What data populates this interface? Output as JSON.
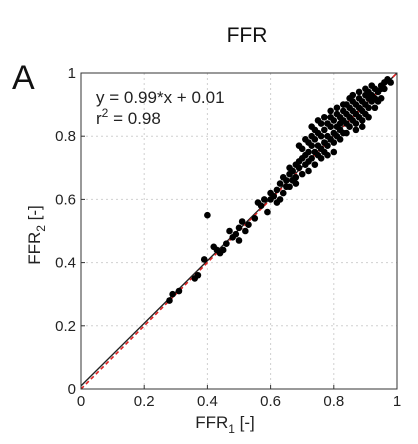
{
  "chart_data": {
    "type": "scatter",
    "title": "FFR",
    "panel_label": "A",
    "xlabel": {
      "base": "FFR",
      "sub": "1",
      "suffix": " [-]"
    },
    "ylabel": {
      "base": "FFR",
      "sub": "2",
      "suffix": " [-]"
    },
    "xlim": [
      0,
      1
    ],
    "ylim": [
      0,
      1
    ],
    "grid": true,
    "x_ticks": [
      "0",
      "0.2",
      "0.4",
      "0.6",
      "0.8",
      "1"
    ],
    "y_ticks": [
      "0",
      "0.2",
      "0.4",
      "0.6",
      "0.8",
      "1"
    ],
    "annotation": {
      "equation": "y = 0.99*x + 0.01",
      "r2_base": "r",
      "r2_sup": "2",
      "r2_value": " = 0.98"
    },
    "fit": {
      "slope": 0.99,
      "intercept": 0.01,
      "color": "#222222"
    },
    "identity_line": {
      "slope": 1,
      "intercept": 0,
      "color": "#e02020",
      "style": "dashed"
    },
    "point_color": "#000000",
    "points": [
      [
        0.28,
        0.28
      ],
      [
        0.29,
        0.3
      ],
      [
        0.31,
        0.31
      ],
      [
        0.36,
        0.35
      ],
      [
        0.37,
        0.36
      ],
      [
        0.39,
        0.41
      ],
      [
        0.4,
        0.55
      ],
      [
        0.42,
        0.45
      ],
      [
        0.43,
        0.44
      ],
      [
        0.44,
        0.43
      ],
      [
        0.45,
        0.44
      ],
      [
        0.46,
        0.46
      ],
      [
        0.47,
        0.5
      ],
      [
        0.48,
        0.48
      ],
      [
        0.49,
        0.49
      ],
      [
        0.5,
        0.51
      ],
      [
        0.5,
        0.47
      ],
      [
        0.51,
        0.53
      ],
      [
        0.52,
        0.5
      ],
      [
        0.53,
        0.52
      ],
      [
        0.55,
        0.54
      ],
      [
        0.56,
        0.59
      ],
      [
        0.57,
        0.58
      ],
      [
        0.58,
        0.6
      ],
      [
        0.59,
        0.56
      ],
      [
        0.6,
        0.6
      ],
      [
        0.6,
        0.62
      ],
      [
        0.61,
        0.61
      ],
      [
        0.62,
        0.63
      ],
      [
        0.63,
        0.6
      ],
      [
        0.63,
        0.65
      ],
      [
        0.64,
        0.67
      ],
      [
        0.65,
        0.64
      ],
      [
        0.65,
        0.66
      ],
      [
        0.66,
        0.68
      ],
      [
        0.66,
        0.7
      ],
      [
        0.67,
        0.66
      ],
      [
        0.67,
        0.69
      ],
      [
        0.68,
        0.71
      ],
      [
        0.68,
        0.67
      ],
      [
        0.69,
        0.7
      ],
      [
        0.69,
        0.72
      ],
      [
        0.7,
        0.68
      ],
      [
        0.7,
        0.73
      ],
      [
        0.7,
        0.76
      ],
      [
        0.71,
        0.71
      ],
      [
        0.71,
        0.74
      ],
      [
        0.72,
        0.78
      ],
      [
        0.72,
        0.72
      ],
      [
        0.72,
        0.75
      ],
      [
        0.73,
        0.73
      ],
      [
        0.73,
        0.77
      ],
      [
        0.73,
        0.8
      ],
      [
        0.74,
        0.75
      ],
      [
        0.74,
        0.79
      ],
      [
        0.74,
        0.82
      ],
      [
        0.75,
        0.74
      ],
      [
        0.75,
        0.77
      ],
      [
        0.75,
        0.81
      ],
      [
        0.76,
        0.76
      ],
      [
        0.76,
        0.8
      ],
      [
        0.76,
        0.84
      ],
      [
        0.77,
        0.78
      ],
      [
        0.77,
        0.82
      ],
      [
        0.77,
        0.75
      ],
      [
        0.78,
        0.8
      ],
      [
        0.78,
        0.84
      ],
      [
        0.78,
        0.77
      ],
      [
        0.79,
        0.79
      ],
      [
        0.79,
        0.83
      ],
      [
        0.79,
        0.86
      ],
      [
        0.8,
        0.81
      ],
      [
        0.8,
        0.85
      ],
      [
        0.8,
        0.78
      ],
      [
        0.81,
        0.83
      ],
      [
        0.81,
        0.87
      ],
      [
        0.81,
        0.8
      ],
      [
        0.82,
        0.82
      ],
      [
        0.82,
        0.86
      ],
      [
        0.82,
        0.84
      ],
      [
        0.83,
        0.85
      ],
      [
        0.83,
        0.88
      ],
      [
        0.83,
        0.81
      ],
      [
        0.84,
        0.84
      ],
      [
        0.84,
        0.87
      ],
      [
        0.84,
        0.9
      ],
      [
        0.85,
        0.86
      ],
      [
        0.85,
        0.83
      ],
      [
        0.85,
        0.89
      ],
      [
        0.86,
        0.88
      ],
      [
        0.86,
        0.85
      ],
      [
        0.86,
        0.91
      ],
      [
        0.87,
        0.87
      ],
      [
        0.87,
        0.9
      ],
      [
        0.87,
        0.84
      ],
      [
        0.88,
        0.89
      ],
      [
        0.88,
        0.92
      ],
      [
        0.88,
        0.86
      ],
      [
        0.89,
        0.88
      ],
      [
        0.89,
        0.91
      ],
      [
        0.89,
        0.85
      ],
      [
        0.9,
        0.9
      ],
      [
        0.9,
        0.93
      ],
      [
        0.9,
        0.87
      ],
      [
        0.91,
        0.92
      ],
      [
        0.91,
        0.89
      ],
      [
        0.91,
        0.94
      ],
      [
        0.92,
        0.91
      ],
      [
        0.92,
        0.93
      ],
      [
        0.93,
        0.92
      ],
      [
        0.93,
        0.95
      ],
      [
        0.94,
        0.94
      ],
      [
        0.94,
        0.91
      ],
      [
        0.95,
        0.95
      ],
      [
        0.95,
        0.96
      ],
      [
        0.96,
        0.95
      ],
      [
        0.96,
        0.97
      ],
      [
        0.97,
        0.98
      ],
      [
        0.98,
        0.97
      ],
      [
        0.76,
        0.73
      ],
      [
        0.78,
        0.74
      ],
      [
        0.8,
        0.75
      ],
      [
        0.82,
        0.79
      ],
      [
        0.84,
        0.81
      ],
      [
        0.74,
        0.71
      ],
      [
        0.72,
        0.69
      ],
      [
        0.68,
        0.65
      ],
      [
        0.66,
        0.64
      ],
      [
        0.64,
        0.62
      ],
      [
        0.62,
        0.59
      ],
      [
        0.85,
        0.92
      ],
      [
        0.83,
        0.9
      ],
      [
        0.81,
        0.89
      ],
      [
        0.79,
        0.88
      ],
      [
        0.77,
        0.86
      ],
      [
        0.75,
        0.85
      ],
      [
        0.73,
        0.83
      ],
      [
        0.71,
        0.79
      ],
      [
        0.69,
        0.77
      ],
      [
        0.86,
        0.93
      ],
      [
        0.88,
        0.94
      ],
      [
        0.9,
        0.95
      ],
      [
        0.92,
        0.96
      ],
      [
        0.87,
        0.82
      ],
      [
        0.89,
        0.83
      ],
      [
        0.91,
        0.86
      ],
      [
        0.93,
        0.89
      ],
      [
        0.95,
        0.92
      ]
    ]
  }
}
